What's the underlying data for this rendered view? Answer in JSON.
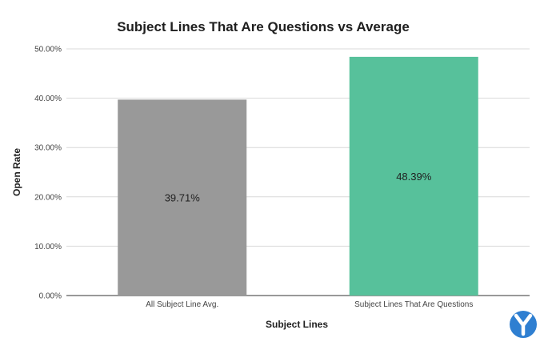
{
  "chart_data": {
    "type": "bar",
    "title": "Subject Lines That Are Questions vs Average",
    "xlabel": "Subject Lines",
    "ylabel": "Open Rate",
    "categories": [
      "All Subject Line Avg.",
      "Subject Lines That Are Questions"
    ],
    "values": [
      39.71,
      48.39
    ],
    "value_labels": [
      "39.71%",
      "48.39%"
    ],
    "colors": [
      "#999999",
      "#57c19b"
    ],
    "ylim": [
      0,
      50
    ],
    "yticks": [
      0,
      10,
      20,
      30,
      40,
      50
    ],
    "ytick_labels": [
      "0.00%",
      "10.00%",
      "20.00%",
      "30.00%",
      "40.00%",
      "50.00%"
    ],
    "grid": true,
    "legend": "none"
  },
  "logo": {
    "icon": "y-brand-logo-icon",
    "color": "#2f7fd1"
  }
}
